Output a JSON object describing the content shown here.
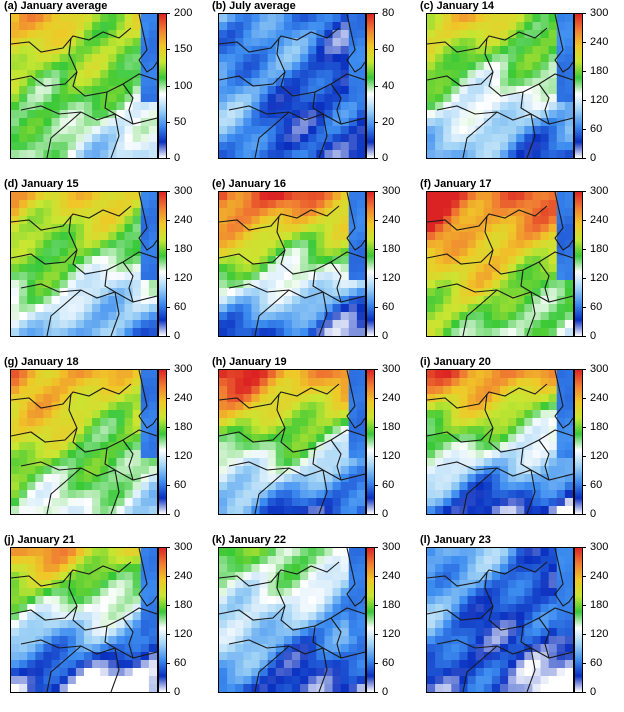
{
  "chart_data": [
    {
      "type": "heatmap",
      "title": "(a) January average",
      "colorbar": {
        "range": [
          0,
          200
        ],
        "ticks": [
          "0",
          "50",
          "100",
          "150",
          "200"
        ]
      },
      "pattern": {
        "level": 0.55,
        "hot_north": 0.3
      }
    },
    {
      "type": "heatmap",
      "title": "(b) July average",
      "colorbar": {
        "range": [
          0,
          80
        ],
        "ticks": [
          "0",
          "20",
          "40",
          "60",
          "80"
        ]
      },
      "pattern": {
        "level": 0.18,
        "hot_north": 0.05
      }
    },
    {
      "type": "heatmap",
      "title": "(c) January 14",
      "colorbar": {
        "range": [
          0,
          300
        ],
        "ticks": [
          "0",
          "60",
          "120",
          "180",
          "240",
          "300"
        ]
      },
      "pattern": {
        "level": 0.45,
        "hot_north": 0.45
      }
    },
    {
      "type": "heatmap",
      "title": "(d) January 15",
      "colorbar": {
        "range": [
          0,
          300
        ],
        "ticks": [
          "0",
          "60",
          "120",
          "180",
          "240",
          "300"
        ]
      },
      "pattern": {
        "level": 0.5,
        "hot_north": 0.45
      }
    },
    {
      "type": "heatmap",
      "title": "(e) January 16",
      "colorbar": {
        "range": [
          0,
          300
        ],
        "ticks": [
          "0",
          "60",
          "120",
          "180",
          "240",
          "300"
        ]
      },
      "pattern": {
        "level": 0.5,
        "hot_north": 0.75
      }
    },
    {
      "type": "heatmap",
      "title": "(f) January 17",
      "colorbar": {
        "range": [
          0,
          300
        ],
        "ticks": [
          "0",
          "60",
          "120",
          "180",
          "240",
          "300"
        ]
      },
      "pattern": {
        "level": 0.7,
        "hot_north": 0.4
      }
    },
    {
      "type": "heatmap",
      "title": "(g) January 18",
      "colorbar": {
        "range": [
          0,
          300
        ],
        "ticks": [
          "0",
          "60",
          "120",
          "180",
          "240",
          "300"
        ]
      },
      "pattern": {
        "level": 0.6,
        "hot_north": 0.35
      }
    },
    {
      "type": "heatmap",
      "title": "(h) January 19",
      "colorbar": {
        "range": [
          0,
          300
        ],
        "ticks": [
          "0",
          "60",
          "120",
          "180",
          "240",
          "300"
        ]
      },
      "pattern": {
        "level": 0.5,
        "hot_north": 0.7
      }
    },
    {
      "type": "heatmap",
      "title": "(i) January 20",
      "colorbar": {
        "range": [
          0,
          300
        ],
        "ticks": [
          "0",
          "60",
          "120",
          "180",
          "240",
          "300"
        ]
      },
      "pattern": {
        "level": 0.45,
        "hot_north": 0.75
      }
    },
    {
      "type": "heatmap",
      "title": "(j) January 21",
      "colorbar": {
        "range": [
          0,
          300
        ],
        "ticks": [
          "0",
          "60",
          "120",
          "180",
          "240",
          "300"
        ]
      },
      "pattern": {
        "level": 0.35,
        "hot_north": 0.75
      }
    },
    {
      "type": "heatmap",
      "title": "(k) January 22",
      "colorbar": {
        "range": [
          0,
          300
        ],
        "ticks": [
          "0",
          "60",
          "120",
          "180",
          "240",
          "300"
        ]
      },
      "pattern": {
        "level": 0.3,
        "hot_north": 0.4
      }
    },
    {
      "type": "heatmap",
      "title": "(l) January 23",
      "colorbar": {
        "range": [
          0,
          300
        ],
        "ticks": [
          "0",
          "60",
          "120",
          "180",
          "240",
          "300"
        ]
      },
      "pattern": {
        "level": 0.15,
        "hot_north": 0.15
      }
    }
  ],
  "colormap": [
    "#ffffff",
    "#0a2fbf",
    "#3c8cf0",
    "#9fd2f5",
    "#ffffff",
    "#37c837",
    "#c8e632",
    "#f0c828",
    "#f07d32",
    "#dc2323"
  ]
}
